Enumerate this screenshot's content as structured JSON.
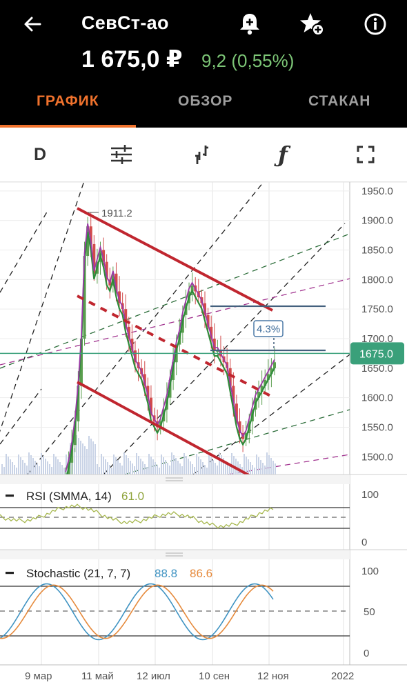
{
  "header": {
    "ticker": "СевСт-ао",
    "price": "1 675,0 ₽",
    "change": "9,2 (0,55%)",
    "change_color": "#7cc576",
    "icons": [
      "back-arrow-icon",
      "add-alert-bell-icon",
      "add-favorite-star-icon",
      "info-icon"
    ]
  },
  "tabs": [
    {
      "label": "ГРАФИК",
      "active": true
    },
    {
      "label": "ОБЗОР",
      "active": false
    },
    {
      "label": "СТАКАН",
      "active": false
    }
  ],
  "toolbar": {
    "period_label": "D",
    "icons": [
      "settings-sliders-icon",
      "chart-type-icon",
      "indicator-function-icon",
      "fullscreen-icon"
    ]
  },
  "price_chart": {
    "y_ticks": [
      "1950.0",
      "1900.0",
      "1850.0",
      "1800.0",
      "1750.0",
      "1700.0",
      "1650.0",
      "1600.0",
      "1550.0",
      "1500.0"
    ],
    "current_price_label": "1675.0",
    "high_annotation": "1911.2",
    "measure_label": "4.3%"
  },
  "rsi": {
    "title": "RSI (SMMA, 14)",
    "value": "61.0",
    "ticks": [
      "100",
      "50",
      "0"
    ]
  },
  "stochastic": {
    "title": "Stochastic (21, 7, 7)",
    "value1": "88.8",
    "value2": "86.6",
    "ticks": [
      "100",
      "50",
      "0"
    ]
  },
  "x_axis": [
    "9 мар",
    "11 май",
    "12 июл",
    "10 сен",
    "12 ноя",
    "2022"
  ],
  "colors": {
    "accent": "#f0722d",
    "price_line": "#3aa07a",
    "channel": "#c0262f",
    "stoch_blue": "#3f93c2",
    "stoch_orange": "#e68a3c"
  },
  "chart_data": {
    "type": "candlestick",
    "ylim": [
      1470,
      1965
    ],
    "series_close": [
      1470,
      1490,
      1520,
      1560,
      1620,
      1700,
      1840,
      1890,
      1860,
      1810,
      1830,
      1850,
      1830,
      1800,
      1790,
      1810,
      1780,
      1760,
      1750,
      1720,
      1700,
      1680,
      1660,
      1650,
      1640,
      1620,
      1600,
      1570,
      1560,
      1550,
      1560,
      1580,
      1600,
      1630,
      1660,
      1690,
      1710,
      1740,
      1760,
      1780,
      1790,
      1780,
      1770,
      1760,
      1740,
      1720,
      1700,
      1680,
      1680,
      1670,
      1660,
      1650,
      1620,
      1590,
      1560,
      1540,
      1530,
      1540,
      1560,
      1580,
      1600,
      1610,
      1620,
      1630,
      1640,
      1650,
      1660
    ],
    "current": 1675.0,
    "high": 1911.2,
    "rsi_value": 61.0,
    "stoch_k": 88.8,
    "stoch_d": 86.6
  }
}
